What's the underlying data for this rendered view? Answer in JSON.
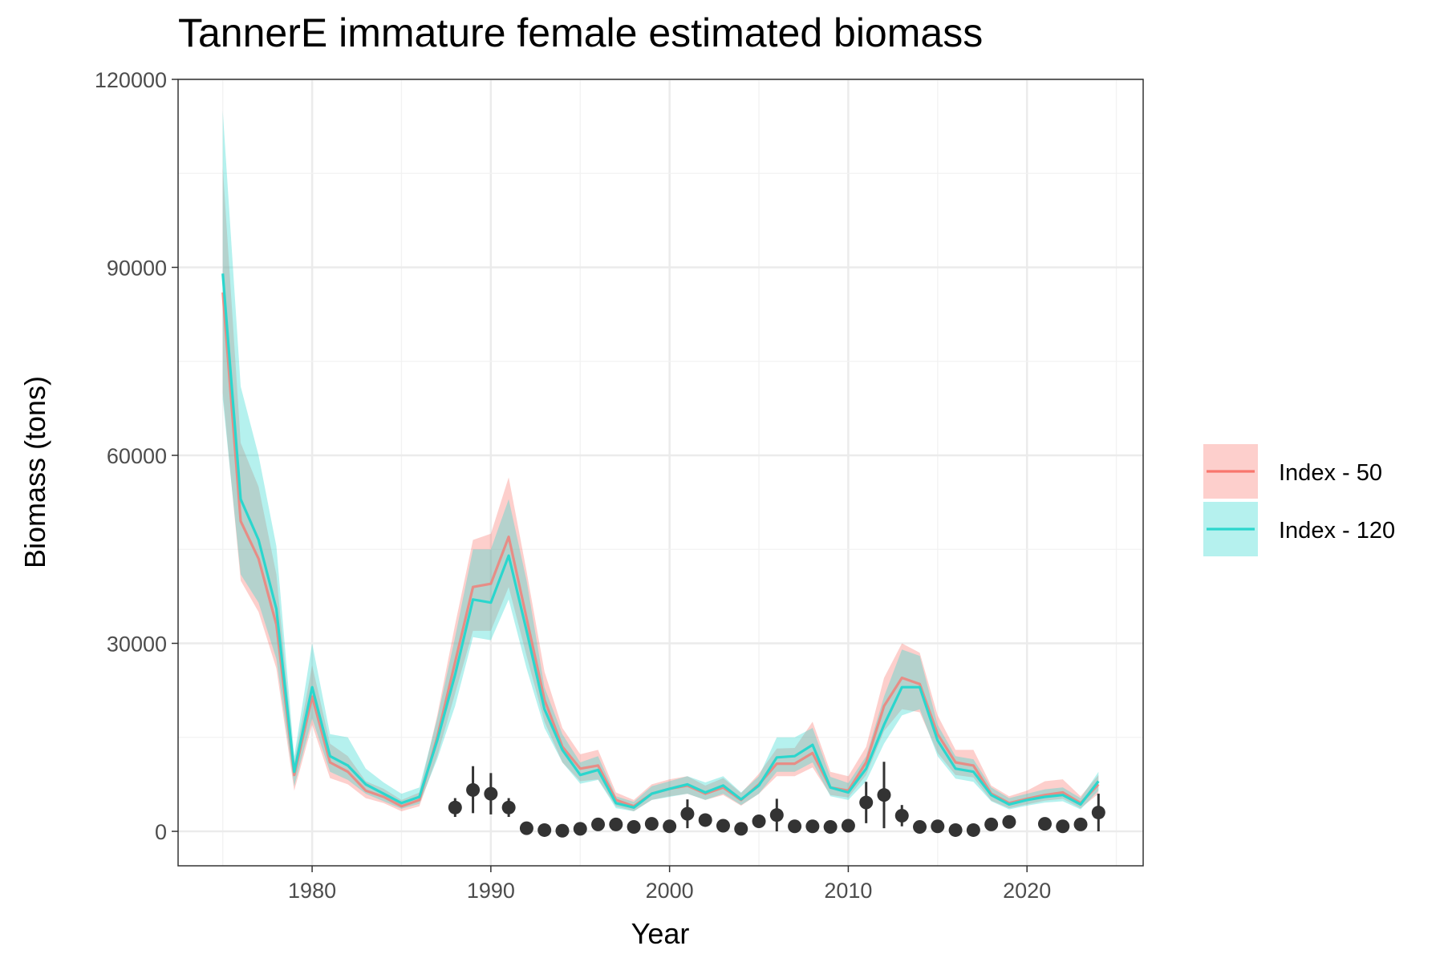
{
  "chart_data": {
    "type": "line",
    "title": "TannerE immature female estimated biomass",
    "xlabel": "Year",
    "ylabel": "Biomass (tons)",
    "xlim": [
      1972.5,
      2026.5
    ],
    "ylim": [
      -5500,
      120000
    ],
    "x_ticks": [
      1980,
      1990,
      2000,
      2010,
      2020
    ],
    "y_ticks": [
      0,
      30000,
      60000,
      90000,
      120000
    ],
    "grid": true,
    "legend": {
      "placement": "right"
    },
    "colors": {
      "index50": "#F8766D",
      "index120": "#2BD6CD",
      "observed": "#333333"
    },
    "series": [
      {
        "name": "Index - 50",
        "x": [
          1975,
          1976,
          1977,
          1978,
          1979,
          1980,
          1981,
          1982,
          1983,
          1984,
          1985,
          1986,
          1987,
          1988,
          1989,
          1990,
          1991,
          1992,
          1993,
          1994,
          1995,
          1996,
          1997,
          1998,
          1999,
          2000,
          2001,
          2002,
          2003,
          2004,
          2005,
          2006,
          2007,
          2008,
          2009,
          2010,
          2011,
          2012,
          2013,
          2014,
          2015,
          2016,
          2017,
          2018,
          2019,
          2020,
          2021,
          2022,
          2023,
          2024
        ],
        "values": [
          86000,
          49500,
          43500,
          33000,
          9000,
          21500,
          11000,
          9500,
          6500,
          5500,
          4000,
          5000,
          15000,
          27000,
          39000,
          39500,
          47000,
          34000,
          21000,
          13500,
          10000,
          10500,
          5000,
          4000,
          6000,
          6800,
          7300,
          6000,
          7000,
          5000,
          7500,
          10800,
          10800,
          12500,
          7000,
          6500,
          11000,
          20000,
          24500,
          23500,
          15500,
          11000,
          10500,
          6000,
          4500,
          5200,
          5800,
          6200,
          4500,
          7500
        ],
        "lower": [
          70000,
          40000,
          35000,
          26000,
          6500,
          17000,
          8500,
          7500,
          5300,
          4500,
          3200,
          4000,
          12000,
          22000,
          32000,
          32000,
          39000,
          28000,
          17500,
          11000,
          8000,
          8300,
          4000,
          3200,
          5000,
          5600,
          6000,
          5000,
          5800,
          4100,
          6000,
          8800,
          8800,
          10200,
          5800,
          5400,
          9000,
          16000,
          19500,
          19000,
          12500,
          9000,
          8600,
          4900,
          3700,
          4300,
          4900,
          5200,
          3700,
          6000
        ],
        "upper": [
          106000,
          62000,
          55000,
          41000,
          11000,
          26500,
          14000,
          12000,
          8000,
          6800,
          5000,
          6200,
          18500,
          33000,
          46500,
          47500,
          56500,
          41500,
          25500,
          16500,
          12300,
          13000,
          6200,
          5000,
          7500,
          8300,
          8800,
          7300,
          8500,
          6100,
          9200,
          13200,
          13300,
          17500,
          9500,
          8800,
          13500,
          24500,
          30000,
          28500,
          18500,
          13000,
          13000,
          7300,
          5600,
          6500,
          8000,
          8300,
          5600,
          9000
        ]
      },
      {
        "name": "Index - 120",
        "x": [
          1975,
          1976,
          1977,
          1978,
          1979,
          1980,
          1981,
          1982,
          1983,
          1984,
          1985,
          1986,
          1987,
          1988,
          1989,
          1990,
          1991,
          1992,
          1993,
          1994,
          1995,
          1996,
          1997,
          1998,
          1999,
          2000,
          2001,
          2002,
          2003,
          2004,
          2005,
          2006,
          2007,
          2008,
          2009,
          2010,
          2011,
          2012,
          2013,
          2014,
          2015,
          2016,
          2017,
          2018,
          2019,
          2020,
          2021,
          2022,
          2023,
          2024
        ],
        "values": [
          89000,
          53000,
          46500,
          35500,
          9500,
          23000,
          12000,
          10500,
          7500,
          6000,
          4500,
          5500,
          14500,
          25000,
          37000,
          36500,
          44000,
          32000,
          19500,
          13000,
          9000,
          9800,
          4500,
          3800,
          6000,
          6800,
          7500,
          6200,
          7300,
          5100,
          7300,
          11800,
          12000,
          13800,
          7000,
          6200,
          10000,
          17000,
          23000,
          23000,
          14500,
          10000,
          9500,
          5800,
          4300,
          5000,
          5500,
          5800,
          4300,
          8000
        ],
        "lower": [
          69000,
          41000,
          36500,
          27500,
          7200,
          18000,
          9500,
          8200,
          6000,
          4800,
          3600,
          4400,
          11500,
          20000,
          31000,
          30500,
          37000,
          26000,
          16500,
          11000,
          7600,
          8200,
          3700,
          3200,
          5000,
          5500,
          6000,
          5000,
          6000,
          4200,
          6000,
          9500,
          9500,
          11000,
          5600,
          5000,
          8000,
          14000,
          18500,
          19500,
          12000,
          8400,
          7900,
          4800,
          3500,
          4100,
          4600,
          4800,
          3500,
          6500
        ],
        "upper": [
          115000,
          71000,
          60000,
          45500,
          12000,
          30000,
          15500,
          15000,
          10000,
          7800,
          6000,
          7000,
          18000,
          31000,
          45000,
          45000,
          53000,
          40000,
          23000,
          15500,
          11000,
          12000,
          5600,
          4700,
          7200,
          8000,
          8800,
          7800,
          8800,
          6200,
          8800,
          15000,
          15000,
          16500,
          8700,
          7700,
          12000,
          21500,
          29000,
          28000,
          17000,
          12000,
          11500,
          7000,
          5300,
          6000,
          6700,
          7000,
          5300,
          9500
        ]
      }
    ],
    "observed": {
      "x": [
        1988,
        1989,
        1990,
        1991,
        1992,
        1993,
        1994,
        1995,
        1996,
        1997,
        1998,
        1999,
        2000,
        2001,
        2002,
        2003,
        2004,
        2005,
        2006,
        2007,
        2008,
        2009,
        2010,
        2011,
        2012,
        2013,
        2014,
        2015,
        2016,
        2017,
        2018,
        2019,
        2021,
        2022,
        2023,
        2024
      ],
      "values": [
        3800,
        6600,
        6000,
        3800,
        500,
        200,
        100,
        400,
        1100,
        1100,
        700,
        1200,
        800,
        2800,
        1800,
        900,
        400,
        1600,
        2600,
        800,
        800,
        700,
        900,
        4600,
        5800,
        2500,
        700,
        800,
        200,
        200,
        1100,
        1500,
        1200,
        800,
        1100,
        3000
      ],
      "lower": [
        2300,
        2900,
        2700,
        2300,
        100,
        0,
        0,
        0,
        300,
        300,
        200,
        300,
        100,
        500,
        900,
        300,
        0,
        700,
        0,
        200,
        300,
        200,
        200,
        1300,
        500,
        800,
        100,
        200,
        0,
        0,
        300,
        600,
        300,
        200,
        300,
        0
      ],
      "upper": [
        5300,
        10400,
        9300,
        5300,
        900,
        500,
        300,
        800,
        1900,
        1900,
        1200,
        2100,
        1500,
        5100,
        2700,
        1500,
        800,
        2500,
        5200,
        1400,
        1300,
        1200,
        1600,
        7900,
        11100,
        4200,
        1300,
        1400,
        500,
        500,
        1900,
        2400,
        2100,
        1400,
        1900,
        6000
      ]
    }
  }
}
